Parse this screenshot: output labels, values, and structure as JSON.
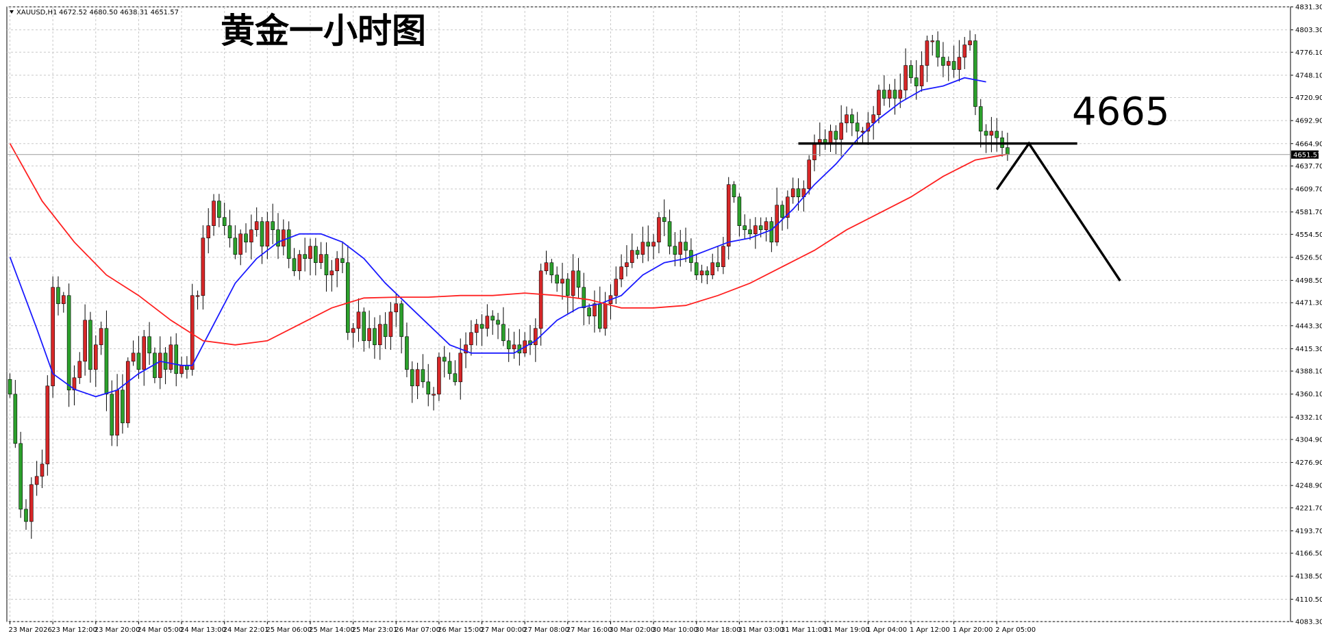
{
  "header": {
    "symbol": "XAUUSD,H1",
    "ohlc": "4672.52 4680.50 4638.31 4651.57"
  },
  "title": "黄金一小时图",
  "annotation_label": "4665",
  "colors": {
    "bull": "#d62728",
    "bear": "#2ca02c",
    "ma_fast": "#1a1aff",
    "ma_slow": "#ff2020",
    "grid": "#c8c8c8",
    "ink": "#000000"
  },
  "chart_data": {
    "type": "candlestick",
    "symbol": "XAUUSD",
    "timeframe": "H1",
    "ylim": [
      4083.3,
      4831.3
    ],
    "y_ticks": [
      "4831.30",
      "4803.30",
      "4776.10",
      "4748.10",
      "4720.90",
      "4692.90",
      "4664.90",
      "4637.70",
      "4609.70",
      "4581.70",
      "4554.50",
      "4526.50",
      "4498.50",
      "4471.30",
      "4443.30",
      "4415.30",
      "4388.10",
      "4360.10",
      "4332.10",
      "4304.90",
      "4276.90",
      "4248.90",
      "4221.70",
      "4193.70",
      "4166.50",
      "4138.50",
      "4110.50",
      "4083.30"
    ],
    "x_ticks": [
      {
        "i": 0,
        "label": "23 Mar 2026"
      },
      {
        "i": 8,
        "label": "23 Mar 12:00"
      },
      {
        "i": 16,
        "label": "23 Mar 20:00"
      },
      {
        "i": 24,
        "label": "24 Mar 05:00"
      },
      {
        "i": 32,
        "label": "24 Mar 13:00"
      },
      {
        "i": 40,
        "label": "24 Mar 22:01"
      },
      {
        "i": 48,
        "label": "25 Mar 06:00"
      },
      {
        "i": 56,
        "label": "25 Mar 14:00"
      },
      {
        "i": 64,
        "label": "25 Mar 23:01"
      },
      {
        "i": 72,
        "label": "26 Mar 07:00"
      },
      {
        "i": 80,
        "label": "26 Mar 15:00"
      },
      {
        "i": 88,
        "label": "27 Mar 00:00"
      },
      {
        "i": 96,
        "label": "27 Mar 08:00"
      },
      {
        "i": 104,
        "label": "27 Mar 16:00"
      },
      {
        "i": 112,
        "label": "30 Mar 02:00"
      },
      {
        "i": 120,
        "label": "30 Mar 10:00"
      },
      {
        "i": 128,
        "label": "30 Mar 18:00"
      },
      {
        "i": 136,
        "label": "31 Mar 03:00"
      },
      {
        "i": 144,
        "label": "31 Mar 11:00"
      },
      {
        "i": 152,
        "label": "31 Mar 19:00"
      },
      {
        "i": 160,
        "label": "1 Apr 04:00"
      },
      {
        "i": 168,
        "label": "1 Apr 12:00"
      },
      {
        "i": 176,
        "label": "1 Apr 20:00"
      },
      {
        "i": 184,
        "label": "2 Apr 05:00"
      }
    ],
    "last_price": "4651.57",
    "bar_count": 187,
    "keys": [
      {
        "i": 0,
        "c": 4360
      },
      {
        "i": 1,
        "c": 4300
      },
      {
        "i": 2,
        "c": 4220
      },
      {
        "i": 3,
        "c": 4205
      },
      {
        "i": 4,
        "c": 4250
      },
      {
        "i": 5,
        "c": 4260
      },
      {
        "i": 6,
        "c": 4275
      },
      {
        "i": 7,
        "c": 4370
      },
      {
        "i": 8,
        "c": 4490
      },
      {
        "i": 9,
        "c": 4470
      },
      {
        "i": 10,
        "c": 4480
      },
      {
        "i": 11,
        "c": 4365
      },
      {
        "i": 12,
        "c": 4380
      },
      {
        "i": 13,
        "c": 4400
      },
      {
        "i": 14,
        "c": 4450
      },
      {
        "i": 15,
        "c": 4390
      },
      {
        "i": 16,
        "c": 4420
      },
      {
        "i": 17,
        "c": 4440
      },
      {
        "i": 18,
        "c": 4360
      },
      {
        "i": 19,
        "c": 4310
      },
      {
        "i": 20,
        "c": 4365
      },
      {
        "i": 21,
        "c": 4325
      },
      {
        "i": 22,
        "c": 4400
      },
      {
        "i": 23,
        "c": 4410
      },
      {
        "i": 24,
        "c": 4390
      },
      {
        "i": 25,
        "c": 4430
      },
      {
        "i": 26,
        "c": 4410
      },
      {
        "i": 27,
        "c": 4380
      },
      {
        "i": 28,
        "c": 4410
      },
      {
        "i": 29,
        "c": 4390
      },
      {
        "i": 30,
        "c": 4420
      },
      {
        "i": 31,
        "c": 4385
      },
      {
        "i": 32,
        "c": 4395
      },
      {
        "i": 33,
        "c": 4390
      },
      {
        "i": 34,
        "c": 4480
      },
      {
        "i": 35,
        "c": 4480
      },
      {
        "i": 36,
        "c": 4550
      },
      {
        "i": 37,
        "c": 4565
      },
      {
        "i": 38,
        "c": 4595
      },
      {
        "i": 39,
        "c": 4575
      },
      {
        "i": 40,
        "c": 4565
      },
      {
        "i": 41,
        "c": 4550
      },
      {
        "i": 42,
        "c": 4530
      },
      {
        "i": 43,
        "c": 4555
      },
      {
        "i": 44,
        "c": 4545
      },
      {
        "i": 45,
        "c": 4560
      },
      {
        "i": 46,
        "c": 4570
      },
      {
        "i": 47,
        "c": 4540
      },
      {
        "i": 48,
        "c": 4570
      },
      {
        "i": 49,
        "c": 4560
      },
      {
        "i": 50,
        "c": 4540
      },
      {
        "i": 51,
        "c": 4560
      },
      {
        "i": 52,
        "c": 4525
      },
      {
        "i": 53,
        "c": 4510
      },
      {
        "i": 54,
        "c": 4530
      },
      {
        "i": 55,
        "c": 4525
      },
      {
        "i": 56,
        "c": 4540
      },
      {
        "i": 57,
        "c": 4520
      },
      {
        "i": 58,
        "c": 4530
      },
      {
        "i": 59,
        "c": 4505
      },
      {
        "i": 60,
        "c": 4510
      },
      {
        "i": 61,
        "c": 4525
      },
      {
        "i": 62,
        "c": 4520
      },
      {
        "i": 63,
        "c": 4435
      },
      {
        "i": 64,
        "c": 4440
      },
      {
        "i": 65,
        "c": 4460
      },
      {
        "i": 66,
        "c": 4425
      },
      {
        "i": 67,
        "c": 4440
      },
      {
        "i": 68,
        "c": 4420
      },
      {
        "i": 69,
        "c": 4445
      },
      {
        "i": 70,
        "c": 4430
      },
      {
        "i": 71,
        "c": 4460
      },
      {
        "i": 72,
        "c": 4470
      },
      {
        "i": 73,
        "c": 4430
      },
      {
        "i": 74,
        "c": 4390
      },
      {
        "i": 75,
        "c": 4370
      },
      {
        "i": 76,
        "c": 4390
      },
      {
        "i": 77,
        "c": 4375
      },
      {
        "i": 78,
        "c": 4360
      },
      {
        "i": 79,
        "c": 4360
      },
      {
        "i": 80,
        "c": 4405
      },
      {
        "i": 81,
        "c": 4400
      },
      {
        "i": 82,
        "c": 4385
      },
      {
        "i": 83,
        "c": 4375
      },
      {
        "i": 84,
        "c": 4410
      },
      {
        "i": 85,
        "c": 4420
      },
      {
        "i": 86,
        "c": 4435
      },
      {
        "i": 87,
        "c": 4445
      },
      {
        "i": 88,
        "c": 4440
      },
      {
        "i": 89,
        "c": 4455
      },
      {
        "i": 90,
        "c": 4450
      },
      {
        "i": 91,
        "c": 4445
      },
      {
        "i": 92,
        "c": 4425
      },
      {
        "i": 93,
        "c": 4415
      },
      {
        "i": 94,
        "c": 4420
      },
      {
        "i": 95,
        "c": 4410
      },
      {
        "i": 96,
        "c": 4425
      },
      {
        "i": 97,
        "c": 4420
      },
      {
        "i": 98,
        "c": 4440
      },
      {
        "i": 99,
        "c": 4510
      },
      {
        "i": 100,
        "c": 4520
      },
      {
        "i": 101,
        "c": 4505
      },
      {
        "i": 102,
        "c": 4495
      },
      {
        "i": 103,
        "c": 4500
      },
      {
        "i": 104,
        "c": 4480
      },
      {
        "i": 105,
        "c": 4510
      },
      {
        "i": 106,
        "c": 4490
      },
      {
        "i": 107,
        "c": 4465
      },
      {
        "i": 108,
        "c": 4455
      },
      {
        "i": 109,
        "c": 4470
      },
      {
        "i": 110,
        "c": 4440
      },
      {
        "i": 111,
        "c": 4470
      },
      {
        "i": 112,
        "c": 4480
      },
      {
        "i": 113,
        "c": 4500
      },
      {
        "i": 114,
        "c": 4515
      },
      {
        "i": 115,
        "c": 4520
      },
      {
        "i": 116,
        "c": 4535
      },
      {
        "i": 117,
        "c": 4530
      },
      {
        "i": 118,
        "c": 4545
      },
      {
        "i": 119,
        "c": 4540
      },
      {
        "i": 120,
        "c": 4545
      },
      {
        "i": 121,
        "c": 4575
      },
      {
        "i": 122,
        "c": 4570
      },
      {
        "i": 123,
        "c": 4540
      },
      {
        "i": 124,
        "c": 4530
      },
      {
        "i": 125,
        "c": 4545
      },
      {
        "i": 126,
        "c": 4535
      },
      {
        "i": 127,
        "c": 4520
      },
      {
        "i": 128,
        "c": 4505
      },
      {
        "i": 129,
        "c": 4510
      },
      {
        "i": 130,
        "c": 4505
      },
      {
        "i": 131,
        "c": 4520
      },
      {
        "i": 132,
        "c": 4515
      },
      {
        "i": 133,
        "c": 4540
      },
      {
        "i": 134,
        "c": 4615
      },
      {
        "i": 135,
        "c": 4600
      },
      {
        "i": 136,
        "c": 4565
      },
      {
        "i": 137,
        "c": 4560
      },
      {
        "i": 138,
        "c": 4555
      },
      {
        "i": 139,
        "c": 4565
      },
      {
        "i": 140,
        "c": 4560
      },
      {
        "i": 141,
        "c": 4570
      },
      {
        "i": 142,
        "c": 4545
      },
      {
        "i": 143,
        "c": 4590
      },
      {
        "i": 144,
        "c": 4575
      },
      {
        "i": 145,
        "c": 4600
      },
      {
        "i": 146,
        "c": 4610
      },
      {
        "i": 147,
        "c": 4600
      },
      {
        "i": 148,
        "c": 4610
      },
      {
        "i": 149,
        "c": 4645
      },
      {
        "i": 150,
        "c": 4665
      },
      {
        "i": 151,
        "c": 4670
      },
      {
        "i": 152,
        "c": 4665
      },
      {
        "i": 153,
        "c": 4680
      },
      {
        "i": 154,
        "c": 4670
      },
      {
        "i": 155,
        "c": 4690
      },
      {
        "i": 156,
        "c": 4700
      },
      {
        "i": 157,
        "c": 4690
      },
      {
        "i": 158,
        "c": 4680
      },
      {
        "i": 159,
        "c": 4680
      },
      {
        "i": 160,
        "c": 4690
      },
      {
        "i": 161,
        "c": 4700
      },
      {
        "i": 162,
        "c": 4730
      },
      {
        "i": 163,
        "c": 4720
      },
      {
        "i": 164,
        "c": 4730
      },
      {
        "i": 165,
        "c": 4720
      },
      {
        "i": 166,
        "c": 4730
      },
      {
        "i": 167,
        "c": 4760
      },
      {
        "i": 168,
        "c": 4745
      },
      {
        "i": 169,
        "c": 4735
      },
      {
        "i": 170,
        "c": 4760
      },
      {
        "i": 171,
        "c": 4790
      },
      {
        "i": 172,
        "c": 4790
      },
      {
        "i": 173,
        "c": 4770
      },
      {
        "i": 174,
        "c": 4760
      },
      {
        "i": 175,
        "c": 4765
      },
      {
        "i": 176,
        "c": 4755
      },
      {
        "i": 177,
        "c": 4770
      },
      {
        "i": 178,
        "c": 4785
      },
      {
        "i": 179,
        "c": 4790
      },
      {
        "i": 180,
        "c": 4710
      },
      {
        "i": 181,
        "c": 4680
      },
      {
        "i": 182,
        "c": 4675
      },
      {
        "i": 183,
        "c": 4680
      },
      {
        "i": 184,
        "c": 4672
      },
      {
        "i": 185,
        "c": 4660
      },
      {
        "i": 186,
        "c": 4651.57
      }
    ],
    "moving_averages": [
      {
        "color": "#1a1aff",
        "points": [
          [
            0,
            4527
          ],
          [
            5,
            4440
          ],
          [
            8,
            4385
          ],
          [
            12,
            4366
          ],
          [
            16,
            4357
          ],
          [
            20,
            4365
          ],
          [
            24,
            4385
          ],
          [
            28,
            4400
          ],
          [
            32,
            4395
          ],
          [
            34,
            4395
          ],
          [
            38,
            4445
          ],
          [
            42,
            4495
          ],
          [
            46,
            4525
          ],
          [
            50,
            4545
          ],
          [
            54,
            4555
          ],
          [
            58,
            4555
          ],
          [
            62,
            4545
          ],
          [
            66,
            4525
          ],
          [
            70,
            4495
          ],
          [
            74,
            4470
          ],
          [
            78,
            4445
          ],
          [
            82,
            4420
          ],
          [
            86,
            4410
          ],
          [
            90,
            4410
          ],
          [
            94,
            4410
          ],
          [
            98,
            4425
          ],
          [
            102,
            4450
          ],
          [
            106,
            4465
          ],
          [
            110,
            4470
          ],
          [
            114,
            4480
          ],
          [
            118,
            4505
          ],
          [
            122,
            4520
          ],
          [
            126,
            4525
          ],
          [
            130,
            4535
          ],
          [
            134,
            4545
          ],
          [
            138,
            4550
          ],
          [
            142,
            4560
          ],
          [
            146,
            4585
          ],
          [
            150,
            4615
          ],
          [
            154,
            4640
          ],
          [
            158,
            4670
          ],
          [
            162,
            4695
          ],
          [
            166,
            4715
          ],
          [
            170,
            4730
          ],
          [
            174,
            4735
          ],
          [
            178,
            4745
          ],
          [
            182,
            4740
          ]
        ]
      },
      {
        "color": "#ff2020",
        "points": [
          [
            0,
            4665
          ],
          [
            6,
            4595
          ],
          [
            12,
            4545
          ],
          [
            18,
            4505
          ],
          [
            24,
            4480
          ],
          [
            30,
            4450
          ],
          [
            36,
            4425
          ],
          [
            42,
            4420
          ],
          [
            48,
            4425
          ],
          [
            54,
            4445
          ],
          [
            60,
            4465
          ],
          [
            66,
            4477
          ],
          [
            72,
            4478
          ],
          [
            78,
            4478
          ],
          [
            84,
            4480
          ],
          [
            90,
            4480
          ],
          [
            96,
            4483
          ],
          [
            102,
            4480
          ],
          [
            108,
            4475
          ],
          [
            114,
            4465
          ],
          [
            120,
            4465
          ],
          [
            126,
            4468
          ],
          [
            132,
            4480
          ],
          [
            138,
            4495
          ],
          [
            144,
            4515
          ],
          [
            150,
            4535
          ],
          [
            156,
            4560
          ],
          [
            162,
            4580
          ],
          [
            168,
            4600
          ],
          [
            174,
            4625
          ],
          [
            180,
            4645
          ],
          [
            186,
            4652
          ]
        ]
      }
    ],
    "annotations": {
      "level": 4665,
      "line_from_bar": 147,
      "line_to_bar": 199,
      "path": [
        [
          184,
          4609
        ],
        [
          190,
          4665
        ],
        [
          207,
          4498
        ]
      ]
    }
  }
}
